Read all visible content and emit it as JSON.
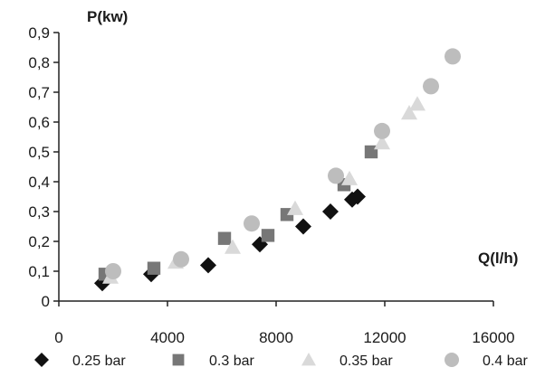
{
  "chart_data": {
    "type": "scatter",
    "xlabel": "Q(l/h)",
    "ylabel": "P(kw)",
    "xlim": [
      0,
      16000
    ],
    "ylim": [
      0,
      0.9
    ],
    "x_ticks": [
      "0",
      "4000",
      "8000",
      "12000",
      "16000"
    ],
    "y_ticks": [
      "0",
      "0,1",
      "0,2",
      "0,3",
      "0,4",
      "0,5",
      "0,6",
      "0,7",
      "0,8",
      "0,9"
    ],
    "grid": false,
    "legend_position": "bottom",
    "series": [
      {
        "name": "0.25 bar",
        "marker": "diamond",
        "color": "#111111",
        "points": [
          {
            "x": 1600,
            "y": 0.06
          },
          {
            "x": 3400,
            "y": 0.09
          },
          {
            "x": 5500,
            "y": 0.12
          },
          {
            "x": 7400,
            "y": 0.19
          },
          {
            "x": 9000,
            "y": 0.25
          },
          {
            "x": 10000,
            "y": 0.3
          },
          {
            "x": 10800,
            "y": 0.34
          },
          {
            "x": 11000,
            "y": 0.35
          }
        ]
      },
      {
        "name": "0.3 bar",
        "marker": "square",
        "color": "#777777",
        "points": [
          {
            "x": 1700,
            "y": 0.09
          },
          {
            "x": 3500,
            "y": 0.11
          },
          {
            "x": 6100,
            "y": 0.21
          },
          {
            "x": 7700,
            "y": 0.22
          },
          {
            "x": 8400,
            "y": 0.29
          },
          {
            "x": 10500,
            "y": 0.39
          },
          {
            "x": 11500,
            "y": 0.5
          }
        ]
      },
      {
        "name": "0.35 bar",
        "marker": "triangle",
        "color": "#d9d9d9",
        "points": [
          {
            "x": 1900,
            "y": 0.08
          },
          {
            "x": 4300,
            "y": 0.13
          },
          {
            "x": 6400,
            "y": 0.18
          },
          {
            "x": 8700,
            "y": 0.31
          },
          {
            "x": 10700,
            "y": 0.41
          },
          {
            "x": 11900,
            "y": 0.53
          },
          {
            "x": 12900,
            "y": 0.63
          },
          {
            "x": 13200,
            "y": 0.66
          }
        ]
      },
      {
        "name": "0.4 bar",
        "marker": "circle",
        "color": "#bdbdbd",
        "points": [
          {
            "x": 2000,
            "y": 0.1
          },
          {
            "x": 4500,
            "y": 0.14
          },
          {
            "x": 7100,
            "y": 0.26
          },
          {
            "x": 10200,
            "y": 0.42
          },
          {
            "x": 11900,
            "y": 0.57
          },
          {
            "x": 13700,
            "y": 0.72
          },
          {
            "x": 14500,
            "y": 0.82
          }
        ]
      }
    ]
  }
}
